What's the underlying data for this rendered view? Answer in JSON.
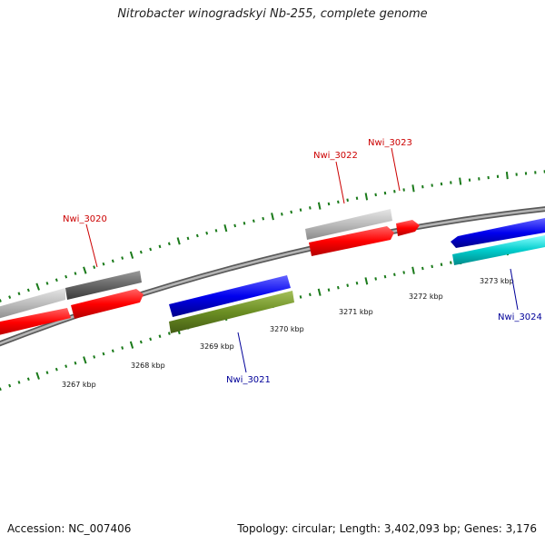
{
  "title": "Nitrobacter winogradskyi Nb-255, complete genome",
  "footer": {
    "accession": "Accession: NC_007406",
    "stats": "Topology: circular; Length: 3,402,093 bp; Genes: 3,176"
  },
  "colors": {
    "forward_label": "#cc0000",
    "reverse_label": "#000099",
    "tick": "#1a7a1a",
    "backbone": "#888888"
  },
  "scale_labels": [
    "3267 kbp",
    "3268 kbp",
    "3269 kbp",
    "3270 kbp",
    "3271 kbp",
    "3272 kbp",
    "3273 kbp"
  ],
  "genes": [
    {
      "id": "Nwi_3020",
      "strand": "forward",
      "label_color": "#cc0000"
    },
    {
      "id": "Nwi_3021",
      "strand": "reverse",
      "label_color": "#000099"
    },
    {
      "id": "Nwi_3022",
      "strand": "forward",
      "label_color": "#cc0000"
    },
    {
      "id": "Nwi_3023",
      "strand": "forward",
      "label_color": "#cc0000"
    },
    {
      "id": "Nwi_3024",
      "strand": "reverse",
      "label_color": "#000099"
    }
  ],
  "features": [
    {
      "name": "cog-bar-light-gray-left",
      "color": "#bbbbbb",
      "strand": "forward"
    },
    {
      "name": "cog-bar-dark-gray",
      "color": "#666666",
      "strand": "forward"
    },
    {
      "name": "cds-bar-red-left",
      "color": "#ff0000",
      "strand": "forward"
    },
    {
      "name": "cds-arrow-red-3020",
      "color": "#ff0000",
      "strand": "forward"
    },
    {
      "name": "cds-bar-blue-3021",
      "color": "#0000ee",
      "strand": "reverse"
    },
    {
      "name": "cog-bar-olive-3021",
      "color": "#6b8e23",
      "strand": "reverse"
    },
    {
      "name": "cog-bar-light-gray-3022",
      "color": "#bbbbbb",
      "strand": "forward"
    },
    {
      "name": "cds-arrow-red-3022",
      "color": "#ff0000",
      "strand": "forward"
    },
    {
      "name": "cds-arrow-red-3023",
      "color": "#ff0000",
      "strand": "forward"
    },
    {
      "name": "cds-arrow-blue-3024",
      "color": "#0000ee",
      "strand": "reverse"
    },
    {
      "name": "cog-bar-cyan-3024",
      "color": "#00cccc",
      "strand": "reverse"
    }
  ]
}
